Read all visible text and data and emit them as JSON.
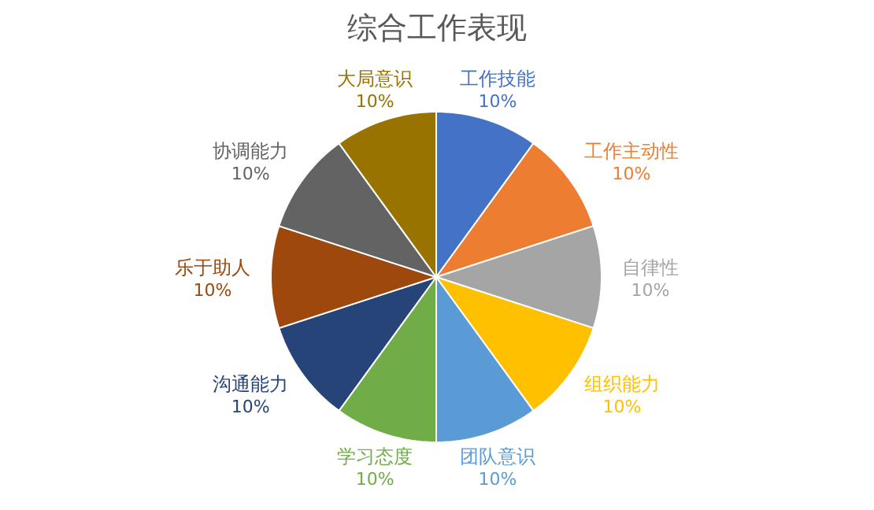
{
  "chart_data": {
    "type": "pie",
    "title": "综合工作表现",
    "categories": [
      "工作技能",
      "工作主动性",
      "自律性",
      "组织能力",
      "团队意识",
      "学习态度",
      "沟通能力",
      "乐于助人",
      "协调能力",
      "大局意识"
    ],
    "values": [
      10,
      10,
      10,
      10,
      10,
      10,
      10,
      10,
      10,
      10
    ],
    "value_labels": [
      "10%",
      "10%",
      "10%",
      "10%",
      "10%",
      "10%",
      "10%",
      "10%",
      "10%",
      "10%"
    ],
    "colors": [
      "#4472c4",
      "#ed7d31",
      "#a5a5a5",
      "#ffc000",
      "#5b9bd5",
      "#70ad47",
      "#264478",
      "#9e480e",
      "#636363",
      "#997300"
    ],
    "legend": false
  }
}
